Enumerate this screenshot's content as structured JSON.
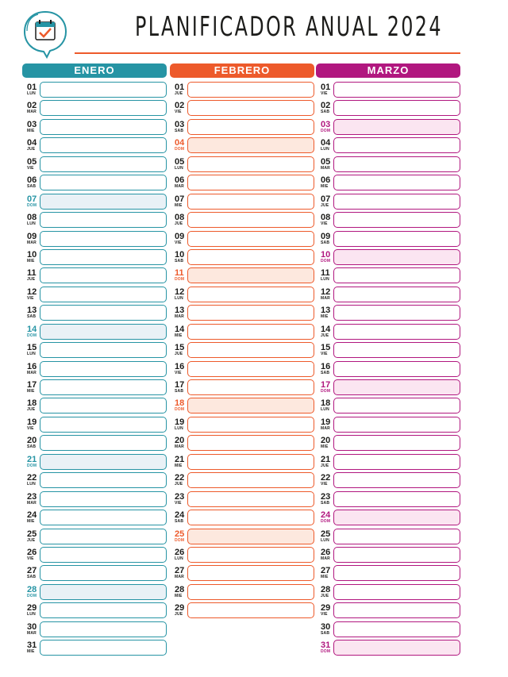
{
  "title": "PLANIFICADOR ANUAL 2024",
  "colors": {
    "rule": "#ed5a2b"
  },
  "months": [
    {
      "name": "ENERO",
      "color": "#2694a4",
      "fill": "#e9f1f6",
      "days": [
        [
          "01",
          "LUN",
          false
        ],
        [
          "02",
          "MAR",
          false
        ],
        [
          "03",
          "MIE",
          false
        ],
        [
          "04",
          "JUE",
          false
        ],
        [
          "05",
          "VIE",
          false
        ],
        [
          "06",
          "SAB",
          false
        ],
        [
          "07",
          "DOM",
          true
        ],
        [
          "08",
          "LUN",
          false
        ],
        [
          "09",
          "MAR",
          false
        ],
        [
          "10",
          "MIE",
          false
        ],
        [
          "11",
          "JUE",
          false
        ],
        [
          "12",
          "VIE",
          false
        ],
        [
          "13",
          "SAB",
          false
        ],
        [
          "14",
          "DOM",
          true
        ],
        [
          "15",
          "LUN",
          false
        ],
        [
          "16",
          "MAR",
          false
        ],
        [
          "17",
          "MIE",
          false
        ],
        [
          "18",
          "JUE",
          false
        ],
        [
          "19",
          "VIE",
          false
        ],
        [
          "20",
          "SAB",
          false
        ],
        [
          "21",
          "DOM",
          true
        ],
        [
          "22",
          "LUN",
          false
        ],
        [
          "23",
          "MAR",
          false
        ],
        [
          "24",
          "MIE",
          false
        ],
        [
          "25",
          "JUE",
          false
        ],
        [
          "26",
          "VIE",
          false
        ],
        [
          "27",
          "SAB",
          false
        ],
        [
          "28",
          "DOM",
          true
        ],
        [
          "29",
          "LUN",
          false
        ],
        [
          "30",
          "MAR",
          false
        ],
        [
          "31",
          "MIE",
          false
        ]
      ]
    },
    {
      "name": "FEBRERO",
      "color": "#ed5a2b",
      "fill": "#fde8de",
      "days": [
        [
          "01",
          "JUE",
          false
        ],
        [
          "02",
          "VIE",
          false
        ],
        [
          "03",
          "SAB",
          false
        ],
        [
          "04",
          "DOM",
          true
        ],
        [
          "05",
          "LUN",
          false
        ],
        [
          "06",
          "MAR",
          false
        ],
        [
          "07",
          "MIE",
          false
        ],
        [
          "08",
          "JUE",
          false
        ],
        [
          "09",
          "VIE",
          false
        ],
        [
          "10",
          "SAB",
          false
        ],
        [
          "11",
          "DOM",
          true
        ],
        [
          "12",
          "LUN",
          false
        ],
        [
          "13",
          "MAR",
          false
        ],
        [
          "14",
          "MIE",
          false
        ],
        [
          "15",
          "JUE",
          false
        ],
        [
          "16",
          "VIE",
          false
        ],
        [
          "17",
          "SAB",
          false
        ],
        [
          "18",
          "DOM",
          true
        ],
        [
          "19",
          "LUN",
          false
        ],
        [
          "20",
          "MAR",
          false
        ],
        [
          "21",
          "MIE",
          false
        ],
        [
          "22",
          "JUE",
          false
        ],
        [
          "23",
          "VIE",
          false
        ],
        [
          "24",
          "SAB",
          false
        ],
        [
          "25",
          "DOM",
          true
        ],
        [
          "26",
          "LUN",
          false
        ],
        [
          "27",
          "MAR",
          false
        ],
        [
          "28",
          "MIE",
          false
        ],
        [
          "29",
          "JUE",
          false
        ]
      ]
    },
    {
      "name": "MARZO",
      "color": "#b1177f",
      "fill": "#fbe5f1",
      "days": [
        [
          "01",
          "VIE",
          false
        ],
        [
          "02",
          "SAB",
          false
        ],
        [
          "03",
          "DOM",
          true
        ],
        [
          "04",
          "LUN",
          false
        ],
        [
          "05",
          "MAR",
          false
        ],
        [
          "06",
          "MIE",
          false
        ],
        [
          "07",
          "JUE",
          false
        ],
        [
          "08",
          "VIE",
          false
        ],
        [
          "09",
          "SAB",
          false
        ],
        [
          "10",
          "DOM",
          true
        ],
        [
          "11",
          "LUN",
          false
        ],
        [
          "12",
          "MAR",
          false
        ],
        [
          "13",
          "MIE",
          false
        ],
        [
          "14",
          "JUE",
          false
        ],
        [
          "15",
          "VIE",
          false
        ],
        [
          "16",
          "SAB",
          false
        ],
        [
          "17",
          "DOM",
          true
        ],
        [
          "18",
          "LUN",
          false
        ],
        [
          "19",
          "MAR",
          false
        ],
        [
          "20",
          "MIE",
          false
        ],
        [
          "21",
          "JUE",
          false
        ],
        [
          "22",
          "VIE",
          false
        ],
        [
          "23",
          "SAB",
          false
        ],
        [
          "24",
          "DOM",
          true
        ],
        [
          "25",
          "LUN",
          false
        ],
        [
          "26",
          "MAR",
          false
        ],
        [
          "27",
          "MIE",
          false
        ],
        [
          "28",
          "JUE",
          false
        ],
        [
          "29",
          "VIE",
          false
        ],
        [
          "30",
          "SAB",
          false
        ],
        [
          "31",
          "DOM",
          true
        ]
      ]
    }
  ]
}
